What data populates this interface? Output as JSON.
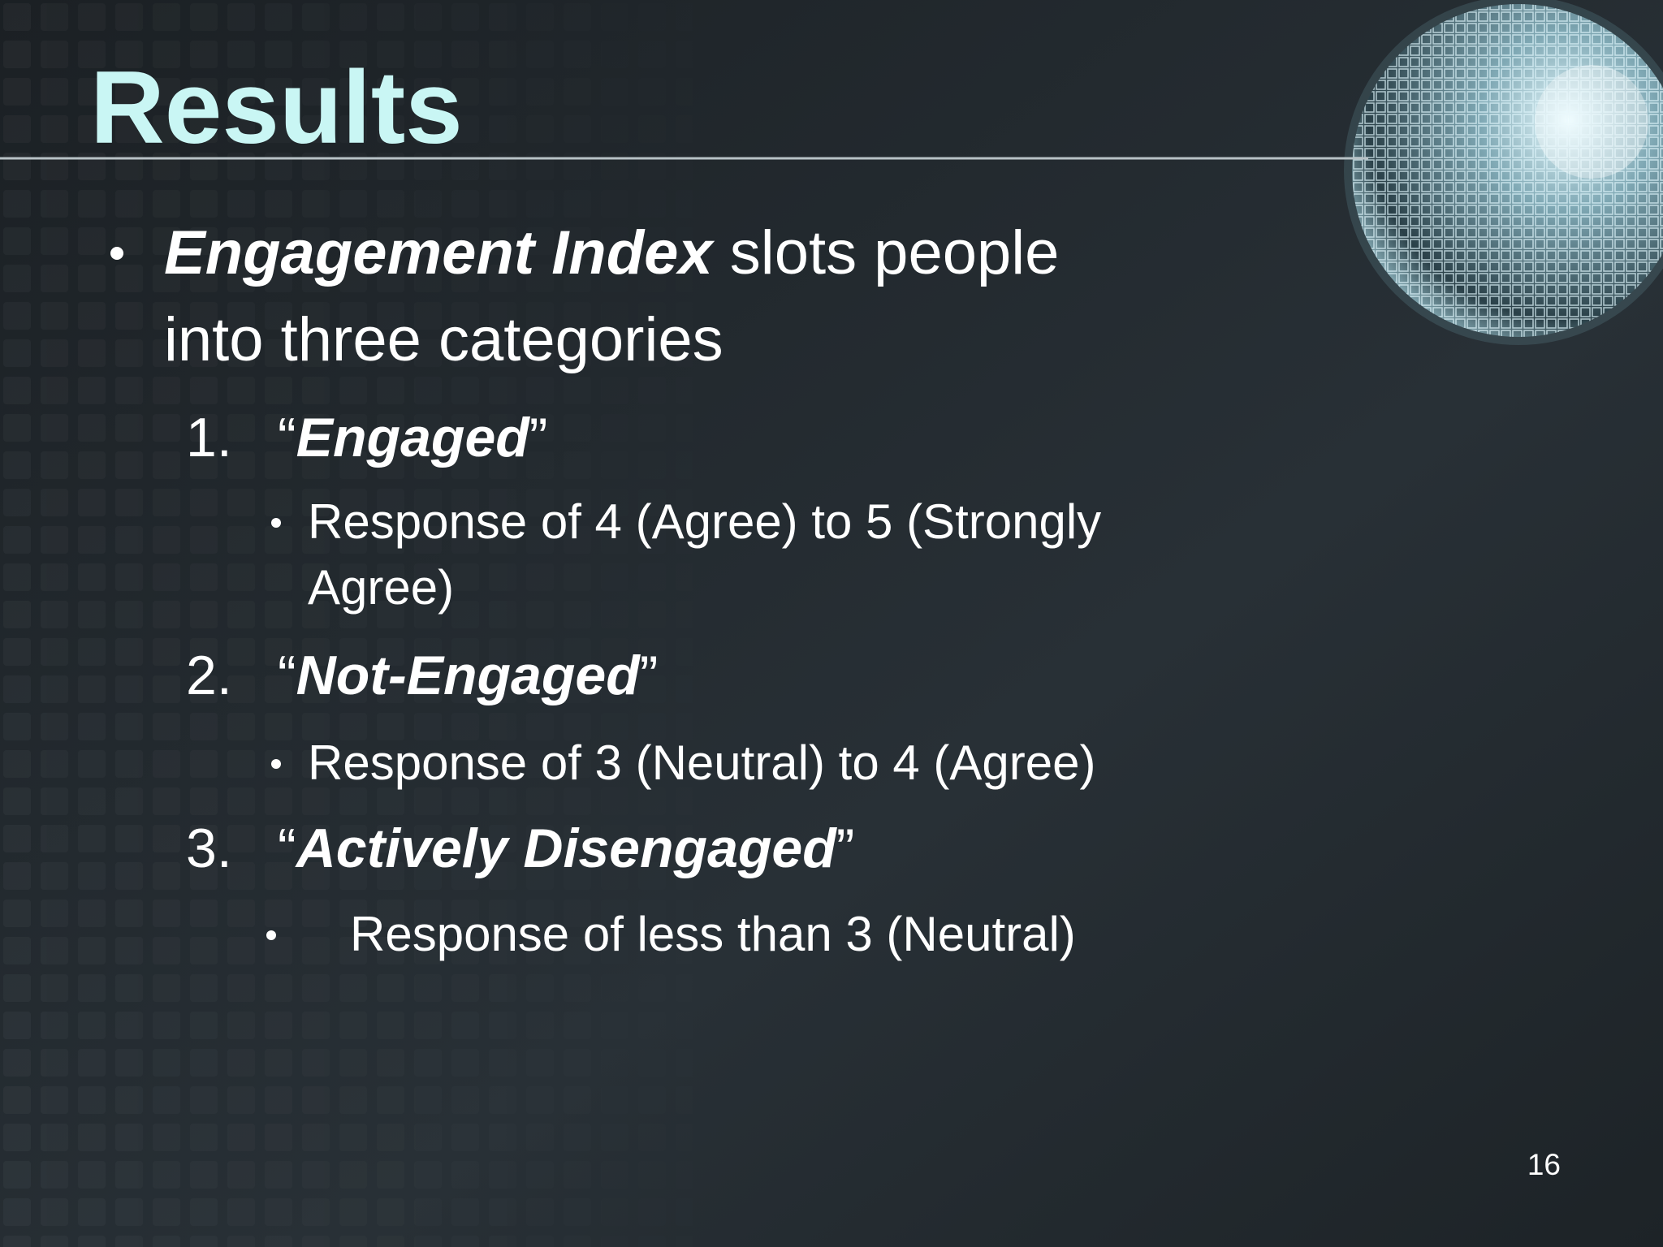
{
  "slide": {
    "title": "Results",
    "bullet": {
      "term": "Engagement Index",
      "line1_rest": " slots people",
      "line2": "into three categories"
    },
    "items": [
      {
        "number": "1.",
        "quote_open": "“",
        "term": "Engaged",
        "quote_close": "”",
        "detail_lines": [
          "Response of 4 (Agree) to 5 (Strongly",
          "Agree)"
        ]
      },
      {
        "number": "2.",
        "quote_open": "“",
        "term": "Not-Engaged",
        "quote_close": "”",
        "detail_lines": [
          "Response of 3 (Neutral) to 4 (Agree)"
        ]
      },
      {
        "number": "3.",
        "quote_open": "“",
        "term": "Actively Disengaged",
        "quote_close": "”",
        "detail_lines": [
          "Response of less than 3 (Neutral)"
        ]
      }
    ],
    "page_number": "16"
  }
}
